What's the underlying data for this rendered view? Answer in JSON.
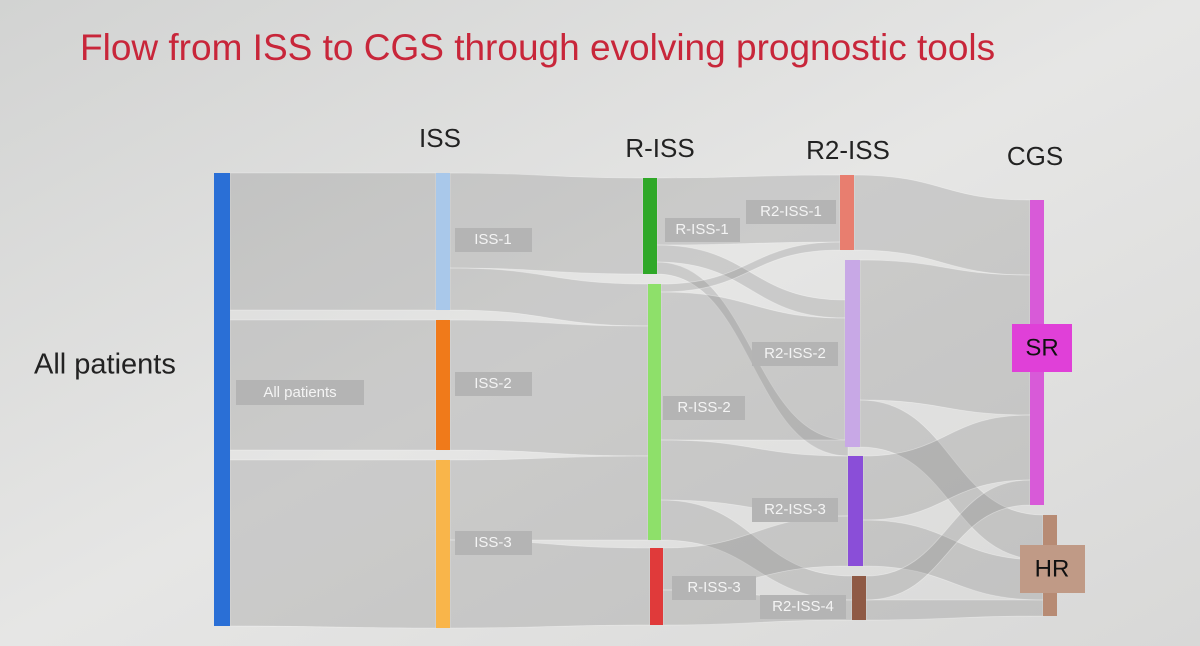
{
  "title": "Flow from ISS to CGS through evolving prognostic tools",
  "columns": [
    "ISS",
    "R-ISS",
    "R2-ISS",
    "CGS"
  ],
  "side_label": "All patients",
  "nodes": [
    {
      "label": "All patients"
    },
    {
      "label": "ISS-1"
    },
    {
      "label": "ISS-2"
    },
    {
      "label": "ISS-3"
    },
    {
      "label": "R-ISS-1"
    },
    {
      "label": "R-ISS-2"
    },
    {
      "label": "R-ISS-3"
    },
    {
      "label": "R2-ISS-1"
    },
    {
      "label": "R2-ISS-2"
    },
    {
      "label": "R2-ISS-3"
    },
    {
      "label": "R2-ISS-4"
    },
    {
      "label": "SR"
    },
    {
      "label": "HR"
    }
  ]
}
